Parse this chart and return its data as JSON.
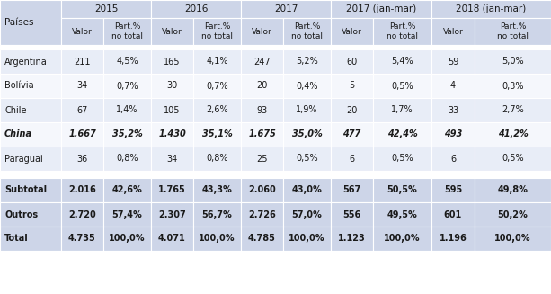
{
  "col_groups": [
    {
      "label": "2015",
      "span": 2
    },
    {
      "label": "2016",
      "span": 2
    },
    {
      "label": "2017",
      "span": 2
    },
    {
      "label": "2017 (jan-mar)",
      "span": 2
    },
    {
      "label": "2018 (jan-mar)",
      "span": 2
    }
  ],
  "rows": [
    {
      "label": "Argentina",
      "bold": false,
      "italic": false,
      "values": [
        "211",
        "4,5%",
        "165",
        "4,1%",
        "247",
        "5,2%",
        "60",
        "5,4%",
        "59",
        "5,0%"
      ]
    },
    {
      "label": "Bolívia",
      "bold": false,
      "italic": false,
      "values": [
        "34",
        "0,7%",
        "30",
        "0,7%",
        "20",
        "0,4%",
        "5",
        "0,5%",
        "4",
        "0,3%"
      ]
    },
    {
      "label": "Chile",
      "bold": false,
      "italic": false,
      "values": [
        "67",
        "1,4%",
        "105",
        "2,6%",
        "93",
        "1,9%",
        "20",
        "1,7%",
        "33",
        "2,7%"
      ]
    },
    {
      "label": "China",
      "bold": true,
      "italic": true,
      "values": [
        "1.667",
        "35,2%",
        "1.430",
        "35,1%",
        "1.675",
        "35,0%",
        "477",
        "42,4%",
        "493",
        "41,2%"
      ]
    },
    {
      "label": "Paraguai",
      "bold": false,
      "italic": false,
      "values": [
        "36",
        "0,8%",
        "34",
        "0,8%",
        "25",
        "0,5%",
        "6",
        "0,5%",
        "6",
        "0,5%"
      ]
    }
  ],
  "summary_rows": [
    {
      "label": "Subtotal",
      "values": [
        "2.016",
        "42,6%",
        "1.765",
        "43,3%",
        "2.060",
        "43,0%",
        "567",
        "50,5%",
        "595",
        "49,8%"
      ]
    },
    {
      "label": "Outros",
      "values": [
        "2.720",
        "57,4%",
        "2.307",
        "56,7%",
        "2.726",
        "57,0%",
        "556",
        "49,5%",
        "601",
        "50,2%"
      ]
    },
    {
      "label": "Total",
      "values": [
        "4.735",
        "100,0%",
        "4.071",
        "100,0%",
        "4.785",
        "100,0%",
        "1.123",
        "100,0%",
        "1.196",
        "100,0%"
      ]
    }
  ],
  "header_bg": "#cdd5e8",
  "row_bg_alt": "#e8edf7",
  "row_bg_white": "#f5f7fc",
  "summary_bg": "#cdd5e8",
  "border_color": "#ffffff",
  "text_color": "#1a1a1a"
}
